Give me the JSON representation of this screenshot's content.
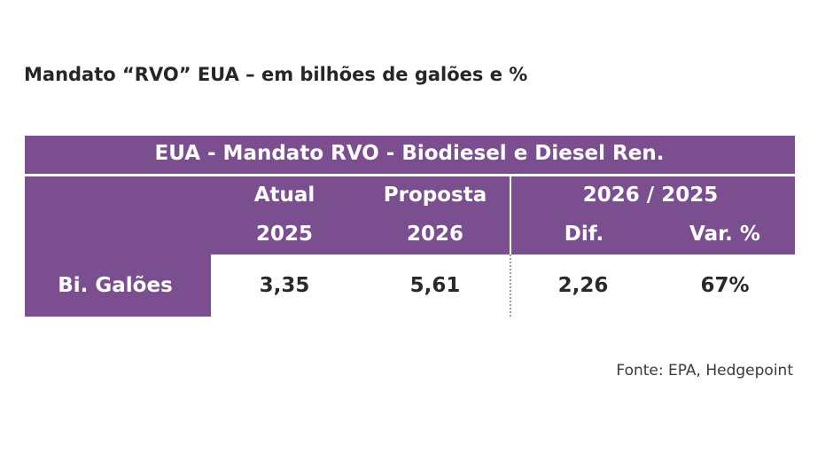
{
  "title": "Mandato “RVO” EUA – em bilhões de galões e %",
  "colors": {
    "header_bg": "#7b4f8f",
    "header_text": "#ffffff",
    "body_text": "#2a2a2a"
  },
  "chart_data": {
    "type": "table",
    "table_title": "EUA - Mandato RVO - Biodiesel e Diesel Ren.",
    "header_groups": [
      {
        "label": "Atual",
        "sub": "2025"
      },
      {
        "label": "Proposta",
        "sub": "2026"
      },
      {
        "label": "2026 / 2025",
        "subs": [
          "Dif.",
          "Var. %"
        ]
      }
    ],
    "columns": [
      "Atual 2025",
      "Proposta 2026",
      "Dif.",
      "Var. %"
    ],
    "rows": [
      {
        "label": "Bi.  Galões",
        "values": [
          "3,35",
          "5,61",
          "2,26",
          "67%"
        ]
      }
    ]
  },
  "source": "Fonte: EPA, Hedgepoint"
}
